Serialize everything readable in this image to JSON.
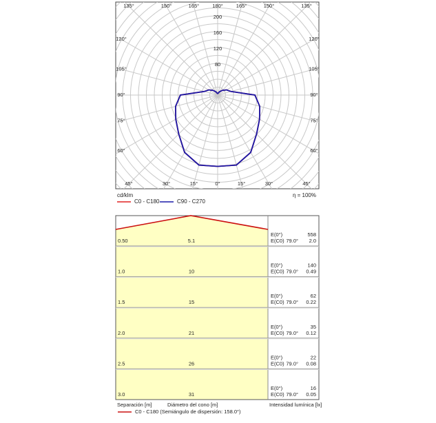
{
  "chart_data": [
    {
      "type": "polar",
      "unit_label": "cd/klm",
      "efficiency_label": "η = 100%",
      "rlim": [
        0,
        240
      ],
      "rticks": [
        80,
        120,
        160,
        200
      ],
      "theta_ticks": [
        {
          "value": -135,
          "label": "135°"
        },
        {
          "value": -150,
          "label": "150°"
        },
        {
          "value": -165,
          "label": "165°"
        },
        {
          "value": 180,
          "label": "180°"
        },
        {
          "value": 165,
          "label": "165°"
        },
        {
          "value": 150,
          "label": "150°"
        },
        {
          "value": 135,
          "label": "135°"
        },
        {
          "value": -120,
          "label": "120°"
        },
        {
          "value": -105,
          "label": "105°"
        },
        {
          "value": -90,
          "label": "90°"
        },
        {
          "value": -75,
          "label": "75°"
        },
        {
          "value": -60,
          "label": "60°"
        },
        {
          "value": 120,
          "label": "120°"
        },
        {
          "value": 105,
          "label": "105°"
        },
        {
          "value": 90,
          "label": "90°"
        },
        {
          "value": 75,
          "label": "75°"
        },
        {
          "value": 60,
          "label": "60°"
        },
        {
          "value": -45,
          "label": "45°"
        },
        {
          "value": -30,
          "label": "30°"
        },
        {
          "value": -15,
          "label": "15°"
        },
        {
          "value": 0,
          "label": "0°"
        },
        {
          "value": 15,
          "label": "15°"
        },
        {
          "value": 30,
          "label": "30°"
        },
        {
          "value": 45,
          "label": "45°"
        }
      ],
      "theta": [
        0,
        15,
        30,
        45,
        60,
        75,
        90,
        105,
        120,
        135,
        150,
        165,
        180
      ],
      "series": [
        {
          "name": "C0 - C180",
          "color": "#e02020",
          "values": [
            180,
            183,
            167,
            139,
            122,
            110,
            94,
            35,
            26,
            17,
            10,
            5,
            3
          ]
        },
        {
          "name": "C90 - C270",
          "color": "#1a1aa8",
          "values": [
            180,
            183,
            167,
            139,
            122,
            110,
            94,
            35,
            26,
            17,
            10,
            5,
            3
          ]
        }
      ]
    },
    {
      "type": "cone",
      "color": "#cc1111",
      "x_label": "Separación [m]",
      "diameter_label": "Diámetro del cono [m]",
      "intensity_label": "Intensidad lumínica [lx]",
      "legend": "C0 - C180 (Semiángulo de dispersión: 158.0°)",
      "e0_label": "E(0°)",
      "ec0_label": "E(C0)",
      "angle_label": "79.0°",
      "heights": [
        0.5,
        1,
        1.5,
        2,
        2.5,
        3
      ],
      "height_labels": [
        "0.50",
        "1.0",
        "1.5",
        "2.0",
        "2.5",
        "3.0"
      ],
      "diameters": [
        5.1,
        10,
        15,
        21,
        26,
        31
      ],
      "e0": [
        558,
        140,
        62,
        35,
        22,
        16
      ],
      "ec0": [
        2,
        0.49,
        0.22,
        0.12,
        0.08,
        0.05
      ],
      "ec0_labels": [
        "2.0",
        "0.49",
        "0.22",
        "0.12",
        "0.08",
        "0.05"
      ]
    }
  ]
}
